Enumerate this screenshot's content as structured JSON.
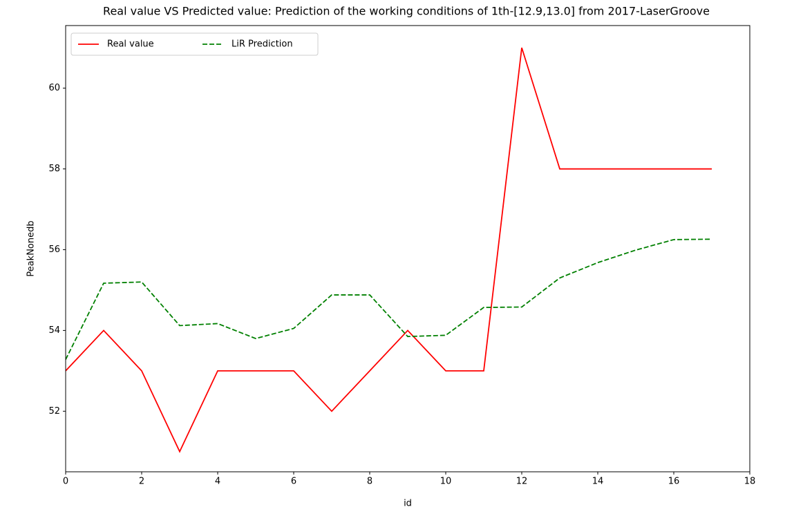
{
  "chart_data": {
    "type": "line",
    "title": "Real value VS Predicted value: Prediction of the working conditions of 1th-[12.9,13.0] from 2017-LaserGroove",
    "x_label": "id",
    "y_label": "PeakNonedb",
    "x": [
      0,
      1,
      2,
      3,
      4,
      5,
      6,
      7,
      8,
      9,
      10,
      11,
      12,
      13,
      14,
      15,
      16,
      17
    ],
    "series": [
      {
        "name": "Real value",
        "color": "#ff0000",
        "linestyle": "solid",
        "values": [
          53,
          54,
          53,
          51,
          53,
          53,
          53,
          52,
          53,
          54,
          53,
          53,
          61,
          58,
          58,
          58,
          58,
          58
        ]
      },
      {
        "name": "LiR Prediction",
        "color": "#008000",
        "linestyle": "dashed",
        "values": [
          53.28,
          55.17,
          55.2,
          54.12,
          54.17,
          53.8,
          54.05,
          54.88,
          54.88,
          53.85,
          53.88,
          54.57,
          54.58,
          55.3,
          55.68,
          55.99,
          56.25,
          56.26
        ]
      }
    ],
    "xlim": [
      0,
      18
    ],
    "xticks": [
      0,
      2,
      4,
      6,
      8,
      10,
      12,
      14,
      16,
      18
    ],
    "ylim": [
      50.5,
      61.55
    ],
    "yticks": [
      52,
      54,
      56,
      58,
      60
    ],
    "legend": "upper left",
    "legend_columns": 2
  }
}
